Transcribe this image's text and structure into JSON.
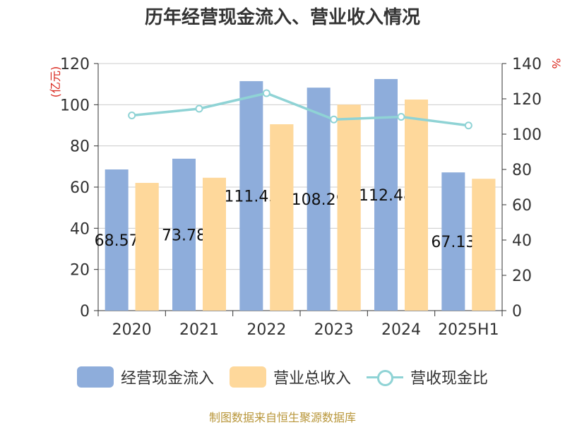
{
  "chart_data": {
    "type": "bar",
    "title": "历年经营现金流入、营业收入情况",
    "left_axis_unit": "(亿元)",
    "right_axis_unit": "%",
    "categories": [
      "2020",
      "2021",
      "2022",
      "2023",
      "2024",
      "2025H1"
    ],
    "series": [
      {
        "name": "经营现金流入",
        "type": "bar",
        "axis": "left",
        "values": [
          68.57,
          73.78,
          111.45,
          108.29,
          112.48,
          67.13
        ],
        "color": "#8eaddb"
      },
      {
        "name": "营业总收入",
        "type": "bar",
        "axis": "left",
        "values": [
          62,
          64.5,
          90.5,
          100,
          102.5,
          64
        ],
        "color": "#fed89b"
      },
      {
        "name": "营收现金比",
        "type": "line",
        "axis": "right",
        "values": [
          110.6,
          114.4,
          123.2,
          108.3,
          109.8,
          104.9
        ],
        "color": "#8fd3d5"
      }
    ],
    "data_labels": [
      "68.57",
      "73.78",
      "111.45",
      "108.29",
      "112.48",
      "67.13"
    ],
    "left_ylim": [
      0,
      120
    ],
    "left_ticks": [
      "0",
      "20",
      "40",
      "60",
      "80",
      "100",
      "120"
    ],
    "right_ylim": [
      0,
      140
    ],
    "right_ticks": [
      "0",
      "20",
      "40",
      "60",
      "80",
      "100",
      "120",
      "140"
    ],
    "grid": true,
    "legend_position": "bottom"
  },
  "footer": {
    "source": "制图数据来自恒生聚源数据库"
  }
}
